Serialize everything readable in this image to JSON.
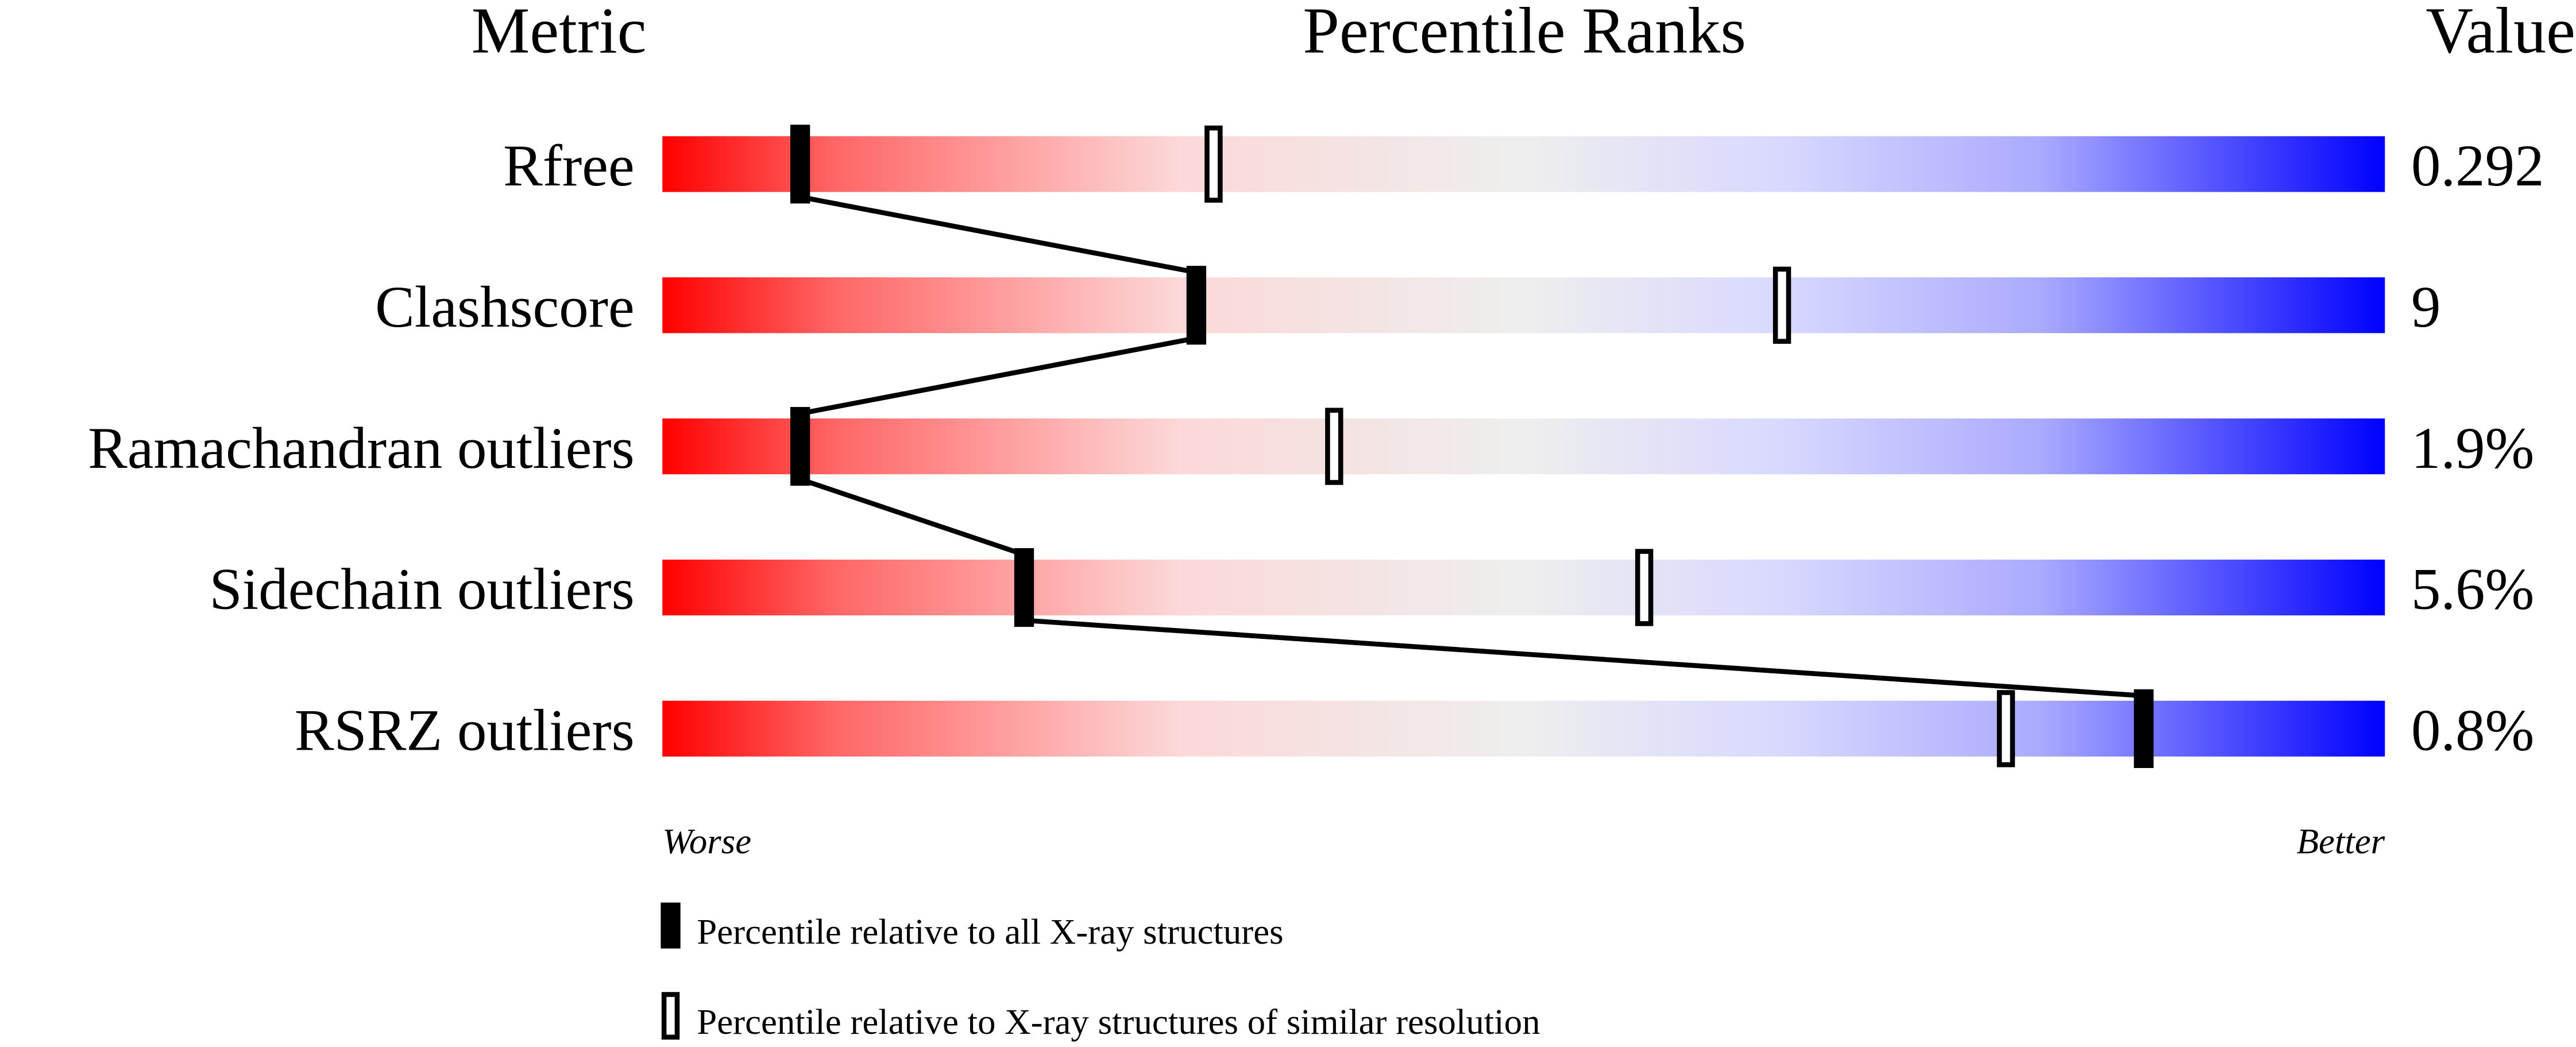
{
  "chart_data": {
    "type": "percentile-bar",
    "headers": {
      "metric": "Metric",
      "ranks": "Percentile Ranks",
      "value": "Value"
    },
    "xlim": [
      0,
      100
    ],
    "metrics": [
      {
        "name": "Rfree",
        "value": "0.292",
        "percentile_all": 8,
        "percentile_similar": 32
      },
      {
        "name": "Clashscore",
        "value": "9",
        "percentile_all": 31,
        "percentile_similar": 65
      },
      {
        "name": "Ramachandran outliers",
        "value": "1.9%",
        "percentile_all": 8,
        "percentile_similar": 39
      },
      {
        "name": "Sidechain outliers",
        "value": "5.6%",
        "percentile_all": 21,
        "percentile_similar": 57
      },
      {
        "name": "RSRZ outliers",
        "value": "0.8%",
        "percentile_all": 86,
        "percentile_similar": 78
      }
    ],
    "axis_labels": {
      "left": "Worse",
      "right": "Better"
    },
    "legend": {
      "all": "Percentile relative to all X-ray structures",
      "similar": "Percentile relative to X-ray structures of similar resolution"
    },
    "colors": {
      "worse": "#ff0000",
      "middle": "#eeeeee",
      "better": "#0000ff"
    }
  }
}
